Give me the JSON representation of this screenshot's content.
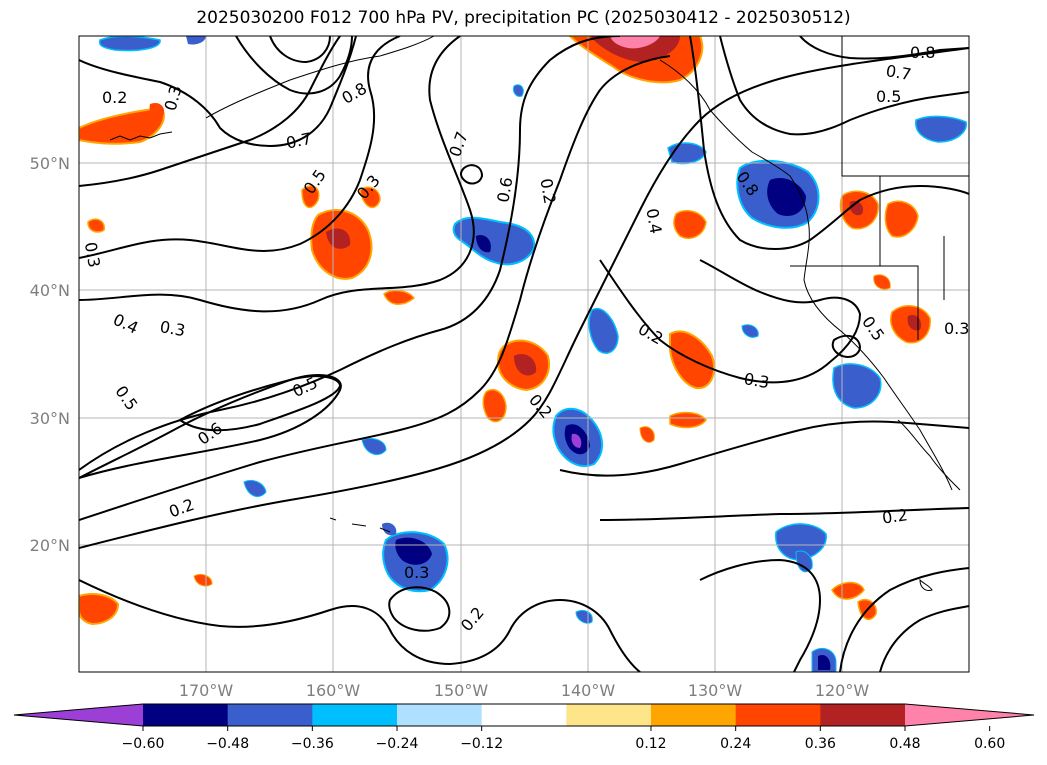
{
  "title": "2025030200 F012 700 hPa PV, precipitation PC (2025030412 - 2025030512)",
  "map": {
    "lat_labels": [
      "50°N",
      "40°N",
      "30°N",
      "20°N"
    ],
    "lon_labels": [
      "170°W",
      "160°W",
      "150°W",
      "140°W",
      "130°W",
      "120°W"
    ],
    "contour_labels": [
      "0.2",
      "0.3",
      "0.8",
      "0.7",
      "0.5",
      "0.3",
      "0.7",
      "0.6",
      "0.2",
      "0.3",
      "0.4",
      "0.3",
      "0.5",
      "0.6",
      "0.5",
      "0.2",
      "0.2",
      "0.3",
      "0.2",
      "0.2",
      "0.3",
      "0.4",
      "0.5",
      "0.8",
      "0.8",
      "0.7",
      "0.5",
      "0.2",
      "0.3"
    ]
  },
  "colorbar": {
    "ticks": [
      "−0.60",
      "−0.48",
      "−0.36",
      "−0.24",
      "−0.12",
      "0.12",
      "0.24",
      "0.36",
      "0.48",
      "0.60"
    ],
    "colors": [
      "#9b3fd6",
      "#000080",
      "#3a5fcd",
      "#00bfff",
      "#b0e0ff",
      "#ffffff",
      "#ffe58a",
      "#ffa500",
      "#ff4500",
      "#b22222",
      "#ff82ab"
    ]
  }
}
